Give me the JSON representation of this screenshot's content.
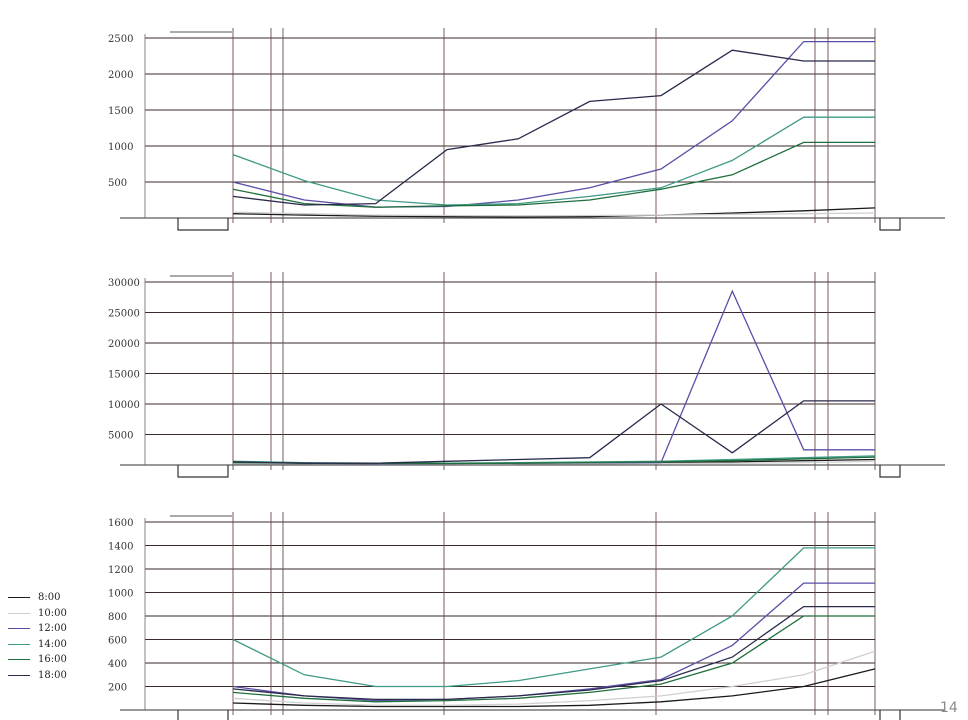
{
  "page": {
    "number": "14"
  },
  "legend": {
    "items": [
      {
        "label": "8:00",
        "color": "#1a1a1a"
      },
      {
        "label": "10:00",
        "color": "#cfcfcf"
      },
      {
        "label": "12:00",
        "color": "#5a4fa8"
      },
      {
        "label": "14:00",
        "color": "#3f9a86"
      },
      {
        "label": "16:00",
        "color": "#1f6e3c"
      },
      {
        "label": "18:00",
        "color": "#2a2a4a"
      }
    ]
  },
  "chart_data": [
    {
      "type": "line",
      "ylim": [
        0,
        2500
      ],
      "yticks": [
        "2500",
        "2000",
        "1500",
        "1000",
        "500"
      ],
      "x": [
        1,
        2,
        3,
        4,
        5,
        6,
        7,
        8,
        9,
        10
      ],
      "series": [
        {
          "name": "8:00",
          "values": [
            60,
            40,
            25,
            20,
            15,
            20,
            40,
            70,
            100,
            140
          ]
        },
        {
          "name": "10:00",
          "values": [
            80,
            60,
            40,
            35,
            30,
            35,
            40,
            50,
            60,
            70
          ]
        },
        {
          "name": "12:00",
          "values": [
            500,
            250,
            150,
            160,
            250,
            420,
            680,
            1350,
            2450,
            2450
          ]
        },
        {
          "name": "14:00",
          "values": [
            880,
            520,
            250,
            180,
            200,
            300,
            420,
            800,
            1400,
            1400
          ]
        },
        {
          "name": "16:00",
          "values": [
            400,
            200,
            150,
            170,
            180,
            250,
            400,
            600,
            1050,
            1050
          ]
        },
        {
          "name": "18:00",
          "values": [
            300,
            180,
            200,
            950,
            1100,
            1620,
            1700,
            2330,
            2180,
            2180
          ]
        }
      ]
    },
    {
      "type": "line",
      "ylim": [
        0,
        30000
      ],
      "yticks": [
        "30000",
        "25000",
        "20000",
        "15000",
        "10000",
        "5000"
      ],
      "x": [
        1,
        2,
        3,
        4,
        5,
        6,
        7,
        8,
        9,
        10
      ],
      "series": [
        {
          "name": "8:00",
          "values": [
            300,
            250,
            200,
            220,
            250,
            300,
            400,
            500,
            700,
            900
          ]
        },
        {
          "name": "10:00",
          "values": [
            200,
            180,
            150,
            160,
            180,
            200,
            250,
            300,
            400,
            600
          ]
        },
        {
          "name": "12:00",
          "values": [
            500,
            300,
            200,
            250,
            300,
            350,
            400,
            28500,
            2500,
            2500
          ]
        },
        {
          "name": "14:00",
          "values": [
            600,
            400,
            300,
            300,
            400,
            500,
            600,
            900,
            1200,
            1500
          ]
        },
        {
          "name": "16:00",
          "values": [
            400,
            300,
            250,
            250,
            300,
            400,
            500,
            700,
            1000,
            1300
          ]
        },
        {
          "name": "18:00",
          "values": [
            500,
            300,
            300,
            600,
            900,
            1200,
            10000,
            2000,
            10500,
            10500
          ]
        }
      ]
    },
    {
      "type": "line",
      "ylim": [
        0,
        1600
      ],
      "yticks": [
        "1600",
        "1400",
        "1200",
        "1000",
        "800",
        "600",
        "400",
        "200"
      ],
      "x": [
        1,
        2,
        3,
        4,
        5,
        6,
        7,
        8,
        9,
        10
      ],
      "series": [
        {
          "name": "8:00",
          "values": [
            60,
            40,
            30,
            30,
            30,
            40,
            70,
            120,
            200,
            350
          ]
        },
        {
          "name": "10:00",
          "values": [
            100,
            60,
            40,
            40,
            50,
            80,
            120,
            200,
            300,
            500
          ]
        },
        {
          "name": "12:00",
          "values": [
            200,
            120,
            80,
            90,
            120,
            180,
            260,
            550,
            1080,
            1080
          ]
        },
        {
          "name": "14:00",
          "values": [
            600,
            300,
            200,
            200,
            250,
            350,
            450,
            800,
            1380,
            1380
          ]
        },
        {
          "name": "16:00",
          "values": [
            150,
            100,
            70,
            80,
            100,
            150,
            220,
            400,
            800,
            800
          ]
        },
        {
          "name": "18:00",
          "values": [
            180,
            120,
            90,
            90,
            120,
            170,
            250,
            450,
            880,
            880
          ]
        }
      ]
    }
  ]
}
